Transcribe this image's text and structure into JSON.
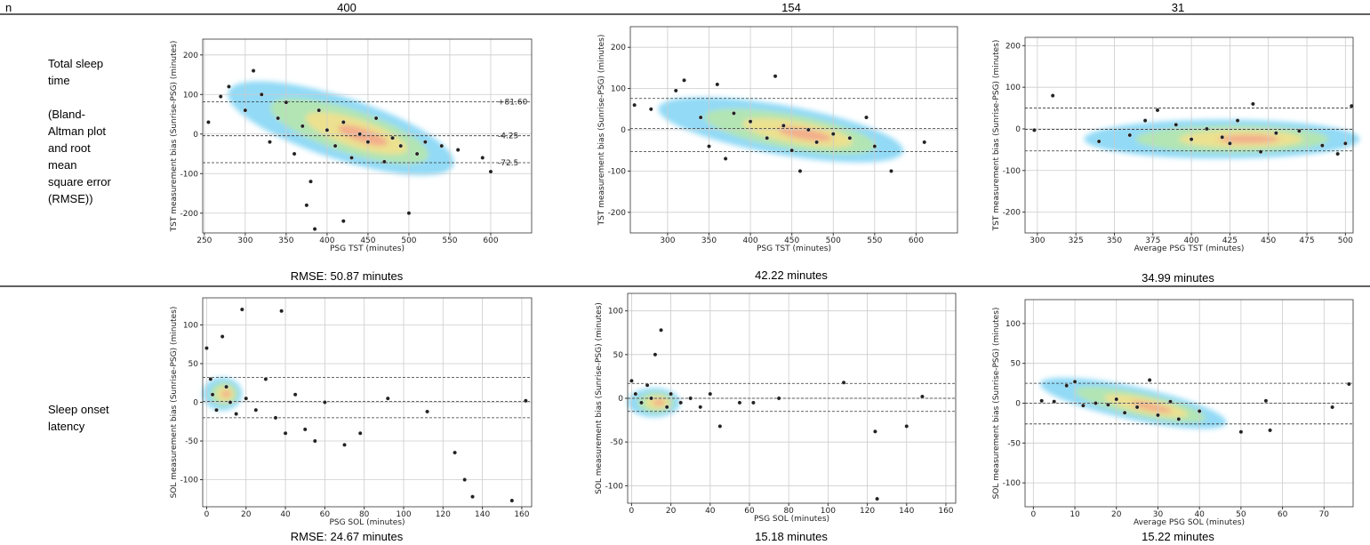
{
  "table": {
    "header": [
      "n",
      "400",
      "154",
      "31"
    ],
    "rows": [
      {
        "label": "Total sleep time",
        "sublabel": "(Bland-Altman plot and root mean square error (RMSE))",
        "captions": [
          "RMSE: 50.87 minutes",
          "42.22 minutes",
          "34.99 minutes"
        ],
        "plots": [
          {
            "type": "scatter",
            "xlabel": "PSG TST (minutes)",
            "ylabel": "TST measurement bias (Sunrise-PSG) (minutes)",
            "xlim": [
              248,
              650
            ],
            "xticks": [
              250,
              300,
              350,
              400,
              450,
              500,
              550,
              600
            ],
            "ylim": [
              -250,
              240
            ],
            "yticks": [
              -200,
              -100,
              0,
              100,
              200
            ],
            "hlines": [
              81.6,
              -4.25,
              -72.5
            ],
            "hline_labels": [
              "+81.60",
              "-4.25",
              "-72.5"
            ],
            "x": [
              255,
              270,
              280,
              300,
              310,
              320,
              330,
              340,
              350,
              360,
              370,
              375,
              380,
              390,
              400,
              410,
              420,
              430,
              440,
              450,
              460,
              470,
              480,
              490,
              500,
              510,
              520,
              540,
              560,
              590,
              600,
              420,
              385
            ],
            "y": [
              30,
              95,
              120,
              60,
              160,
              100,
              -20,
              40,
              80,
              -50,
              20,
              -180,
              -120,
              60,
              10,
              -30,
              30,
              -60,
              0,
              -20,
              40,
              -70,
              -10,
              -30,
              -200,
              -50,
              -20,
              -30,
              -40,
              -60,
              -95,
              -220,
              -240
            ]
          },
          {
            "type": "scatter",
            "xlabel": "PSG TST (minutes)",
            "ylabel": "TST measurement bias (Sunrise-PSG) (minutes)",
            "xlim": [
              255,
              650
            ],
            "xticks": [
              300,
              350,
              400,
              450,
              500,
              550,
              600
            ],
            "ylim": [
              -250,
              250
            ],
            "yticks": [
              -200,
              -100,
              0,
              100,
              200
            ],
            "hlines": [
              76,
              3,
              -53
            ],
            "x": [
              260,
              280,
              310,
              320,
              340,
              350,
              360,
              370,
              380,
              400,
              420,
              430,
              440,
              450,
              460,
              470,
              480,
              500,
              520,
              540,
              550,
              570,
              610
            ],
            "y": [
              60,
              50,
              95,
              120,
              30,
              -40,
              110,
              -70,
              40,
              20,
              -20,
              130,
              10,
              -50,
              -100,
              0,
              -30,
              -10,
              -20,
              30,
              -40,
              -100,
              -30
            ]
          },
          {
            "type": "scatter",
            "xlabel": "Average PSG TST (minutes)",
            "ylabel": "TST measurement bias (Sunrise-PSG) (minutes)",
            "xlim": [
              292,
              505
            ],
            "xticks": [
              300,
              325,
              350,
              375,
              400,
              425,
              450,
              475,
              500
            ],
            "ylim": [
              -250,
              220
            ],
            "yticks": [
              -200,
              -100,
              0,
              100,
              200
            ],
            "hlines": [
              50,
              -1,
              -53
            ],
            "x": [
              298,
              310,
              340,
              360,
              370,
              378,
              390,
              400,
              410,
              420,
              425,
              430,
              440,
              445,
              455,
              470,
              485,
              495,
              500,
              504
            ],
            "y": [
              -3,
              80,
              -30,
              -15,
              20,
              45,
              10,
              -25,
              0,
              -20,
              -35,
              20,
              60,
              -55,
              -10,
              -5,
              -40,
              -60,
              -35,
              55
            ]
          }
        ]
      },
      {
        "label": "Sleep onset latency",
        "captions": [
          "RMSE: 24.67 minutes",
          "15.18 minutes",
          "15.22 minutes"
        ],
        "plots": [
          {
            "type": "scatter",
            "xlabel": "PSG SOL (minutes)",
            "ylabel": "SOL measurement bias (Sunrise-PSG) (minutes)",
            "xlim": [
              -2,
              165
            ],
            "xticks": [
              0,
              20,
              40,
              60,
              80,
              100,
              120,
              140,
              160
            ],
            "ylim": [
              -135,
              135
            ],
            "yticks": [
              -100,
              -50,
              0,
              50,
              100
            ],
            "hlines": [
              32,
              1,
              -20
            ],
            "x": [
              0,
              2,
              3,
              5,
              8,
              10,
              12,
              15,
              18,
              20,
              25,
              30,
              35,
              38,
              40,
              45,
              50,
              55,
              60,
              70,
              78,
              92,
              112,
              126,
              131,
              135,
              155,
              162
            ],
            "y": [
              70,
              30,
              10,
              -10,
              85,
              20,
              0,
              -15,
              120,
              5,
              -10,
              30,
              -20,
              118,
              -40,
              10,
              -35,
              -50,
              0,
              -55,
              -40,
              5,
              -12,
              -65,
              -100,
              -122,
              -127,
              2
            ]
          },
          {
            "type": "scatter",
            "xlabel": "PSG SOL (minutes)",
            "ylabel": "SOL measurement bias (Sunrise-PSG) (minutes)",
            "xlim": [
              -2,
              165
            ],
            "xticks": [
              0,
              20,
              40,
              60,
              80,
              100,
              120,
              140,
              160
            ],
            "ylim": [
              -120,
              120
            ],
            "yticks": [
              -100,
              -50,
              0,
              50,
              100
            ],
            "hlines": [
              17,
              0,
              -15
            ],
            "x": [
              0,
              2,
              5,
              8,
              10,
              12,
              15,
              18,
              20,
              25,
              30,
              35,
              40,
              45,
              55,
              62,
              75,
              108,
              124,
              125,
              140,
              148
            ],
            "y": [
              20,
              5,
              -5,
              15,
              0,
              50,
              78,
              -10,
              5,
              -5,
              0,
              -10,
              5,
              -32,
              -5,
              -5,
              0,
              18,
              -38,
              -115,
              -32,
              2
            ]
          },
          {
            "type": "scatter",
            "xlabel": "Average PSG SOL (minutes)",
            "ylabel": "SOL measurement bias (Sunrise-PSG) (minutes)",
            "xlim": [
              -2,
              77
            ],
            "xticks": [
              0,
              10,
              20,
              30,
              40,
              50,
              60,
              70
            ],
            "ylim": [
              -130,
              130
            ],
            "yticks": [
              -100,
              -50,
              0,
              50,
              100
            ],
            "hlines": [
              25,
              0,
              -26
            ],
            "x": [
              2,
              5,
              8,
              10,
              12,
              15,
              18,
              20,
              22,
              25,
              28,
              30,
              33,
              35,
              40,
              50,
              56,
              57,
              72,
              76
            ],
            "y": [
              3,
              2,
              22,
              27,
              -3,
              0,
              -2,
              5,
              -12,
              -5,
              29,
              -15,
              2,
              -20,
              -10,
              -36,
              3,
              -34,
              -5,
              24
            ]
          }
        ]
      }
    ]
  }
}
